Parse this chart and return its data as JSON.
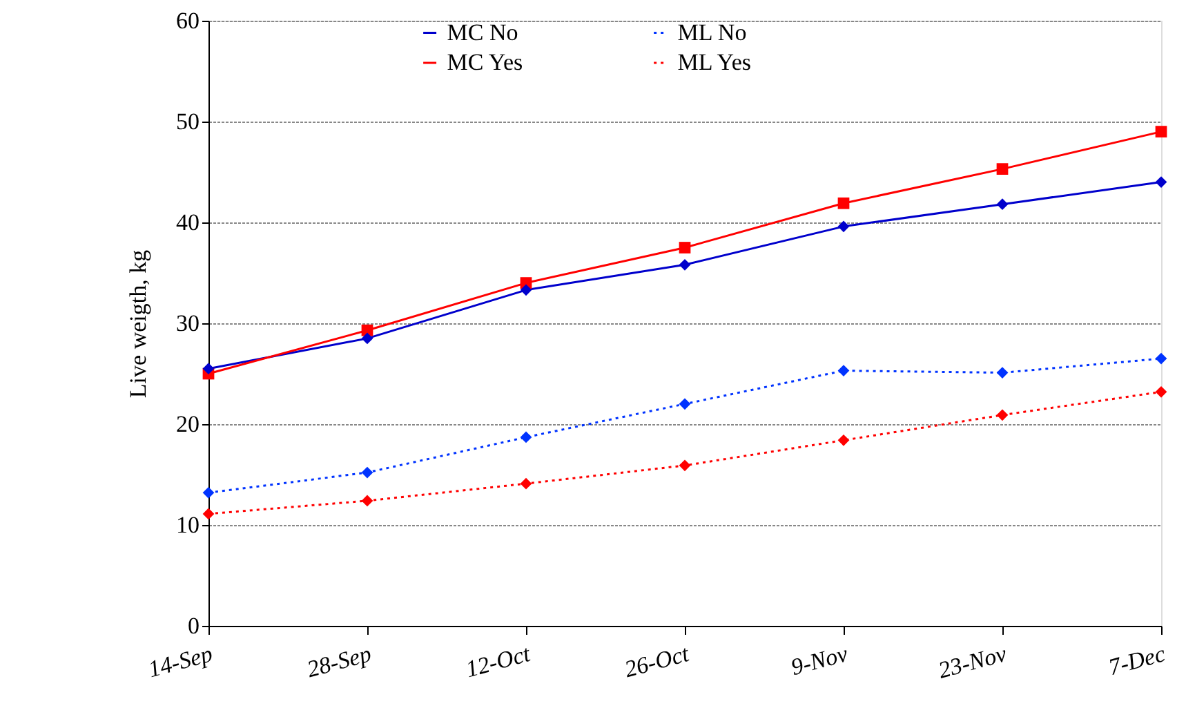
{
  "chart_data": {
    "type": "line",
    "ylabel": "Live weigth, kg",
    "categories": [
      "14-Sep",
      "28-Sep",
      "12-Oct",
      "26-Oct",
      "9-Nov",
      "23-Nov",
      "7-Dec"
    ],
    "ylim": [
      0,
      60
    ],
    "yticks": [
      0,
      10,
      20,
      30,
      40,
      50,
      60
    ],
    "grid": "y",
    "legend": "top",
    "series": [
      {
        "name": "MC No",
        "color": "#0000cc",
        "values": [
          25.5,
          28.5,
          33.3,
          35.8,
          39.6,
          41.8,
          44.0
        ],
        "marker": "diamond",
        "line_style": "solid"
      },
      {
        "name": "MC Yes",
        "color": "#ff0000",
        "values": [
          25.0,
          29.3,
          34.0,
          37.5,
          41.9,
          45.3,
          49.0
        ],
        "marker": "square",
        "line_style": "solid"
      },
      {
        "name": "ML No",
        "color": "#0033ff",
        "values": [
          13.2,
          15.2,
          18.7,
          22.0,
          25.3,
          25.1,
          26.5
        ],
        "marker": "diamond",
        "line_style": "dotted"
      },
      {
        "name": "ML Yes",
        "color": "#ff0000",
        "values": [
          11.1,
          12.4,
          14.1,
          15.9,
          18.4,
          20.9,
          23.2
        ],
        "marker": "diamond",
        "line_style": "dotted"
      }
    ]
  }
}
